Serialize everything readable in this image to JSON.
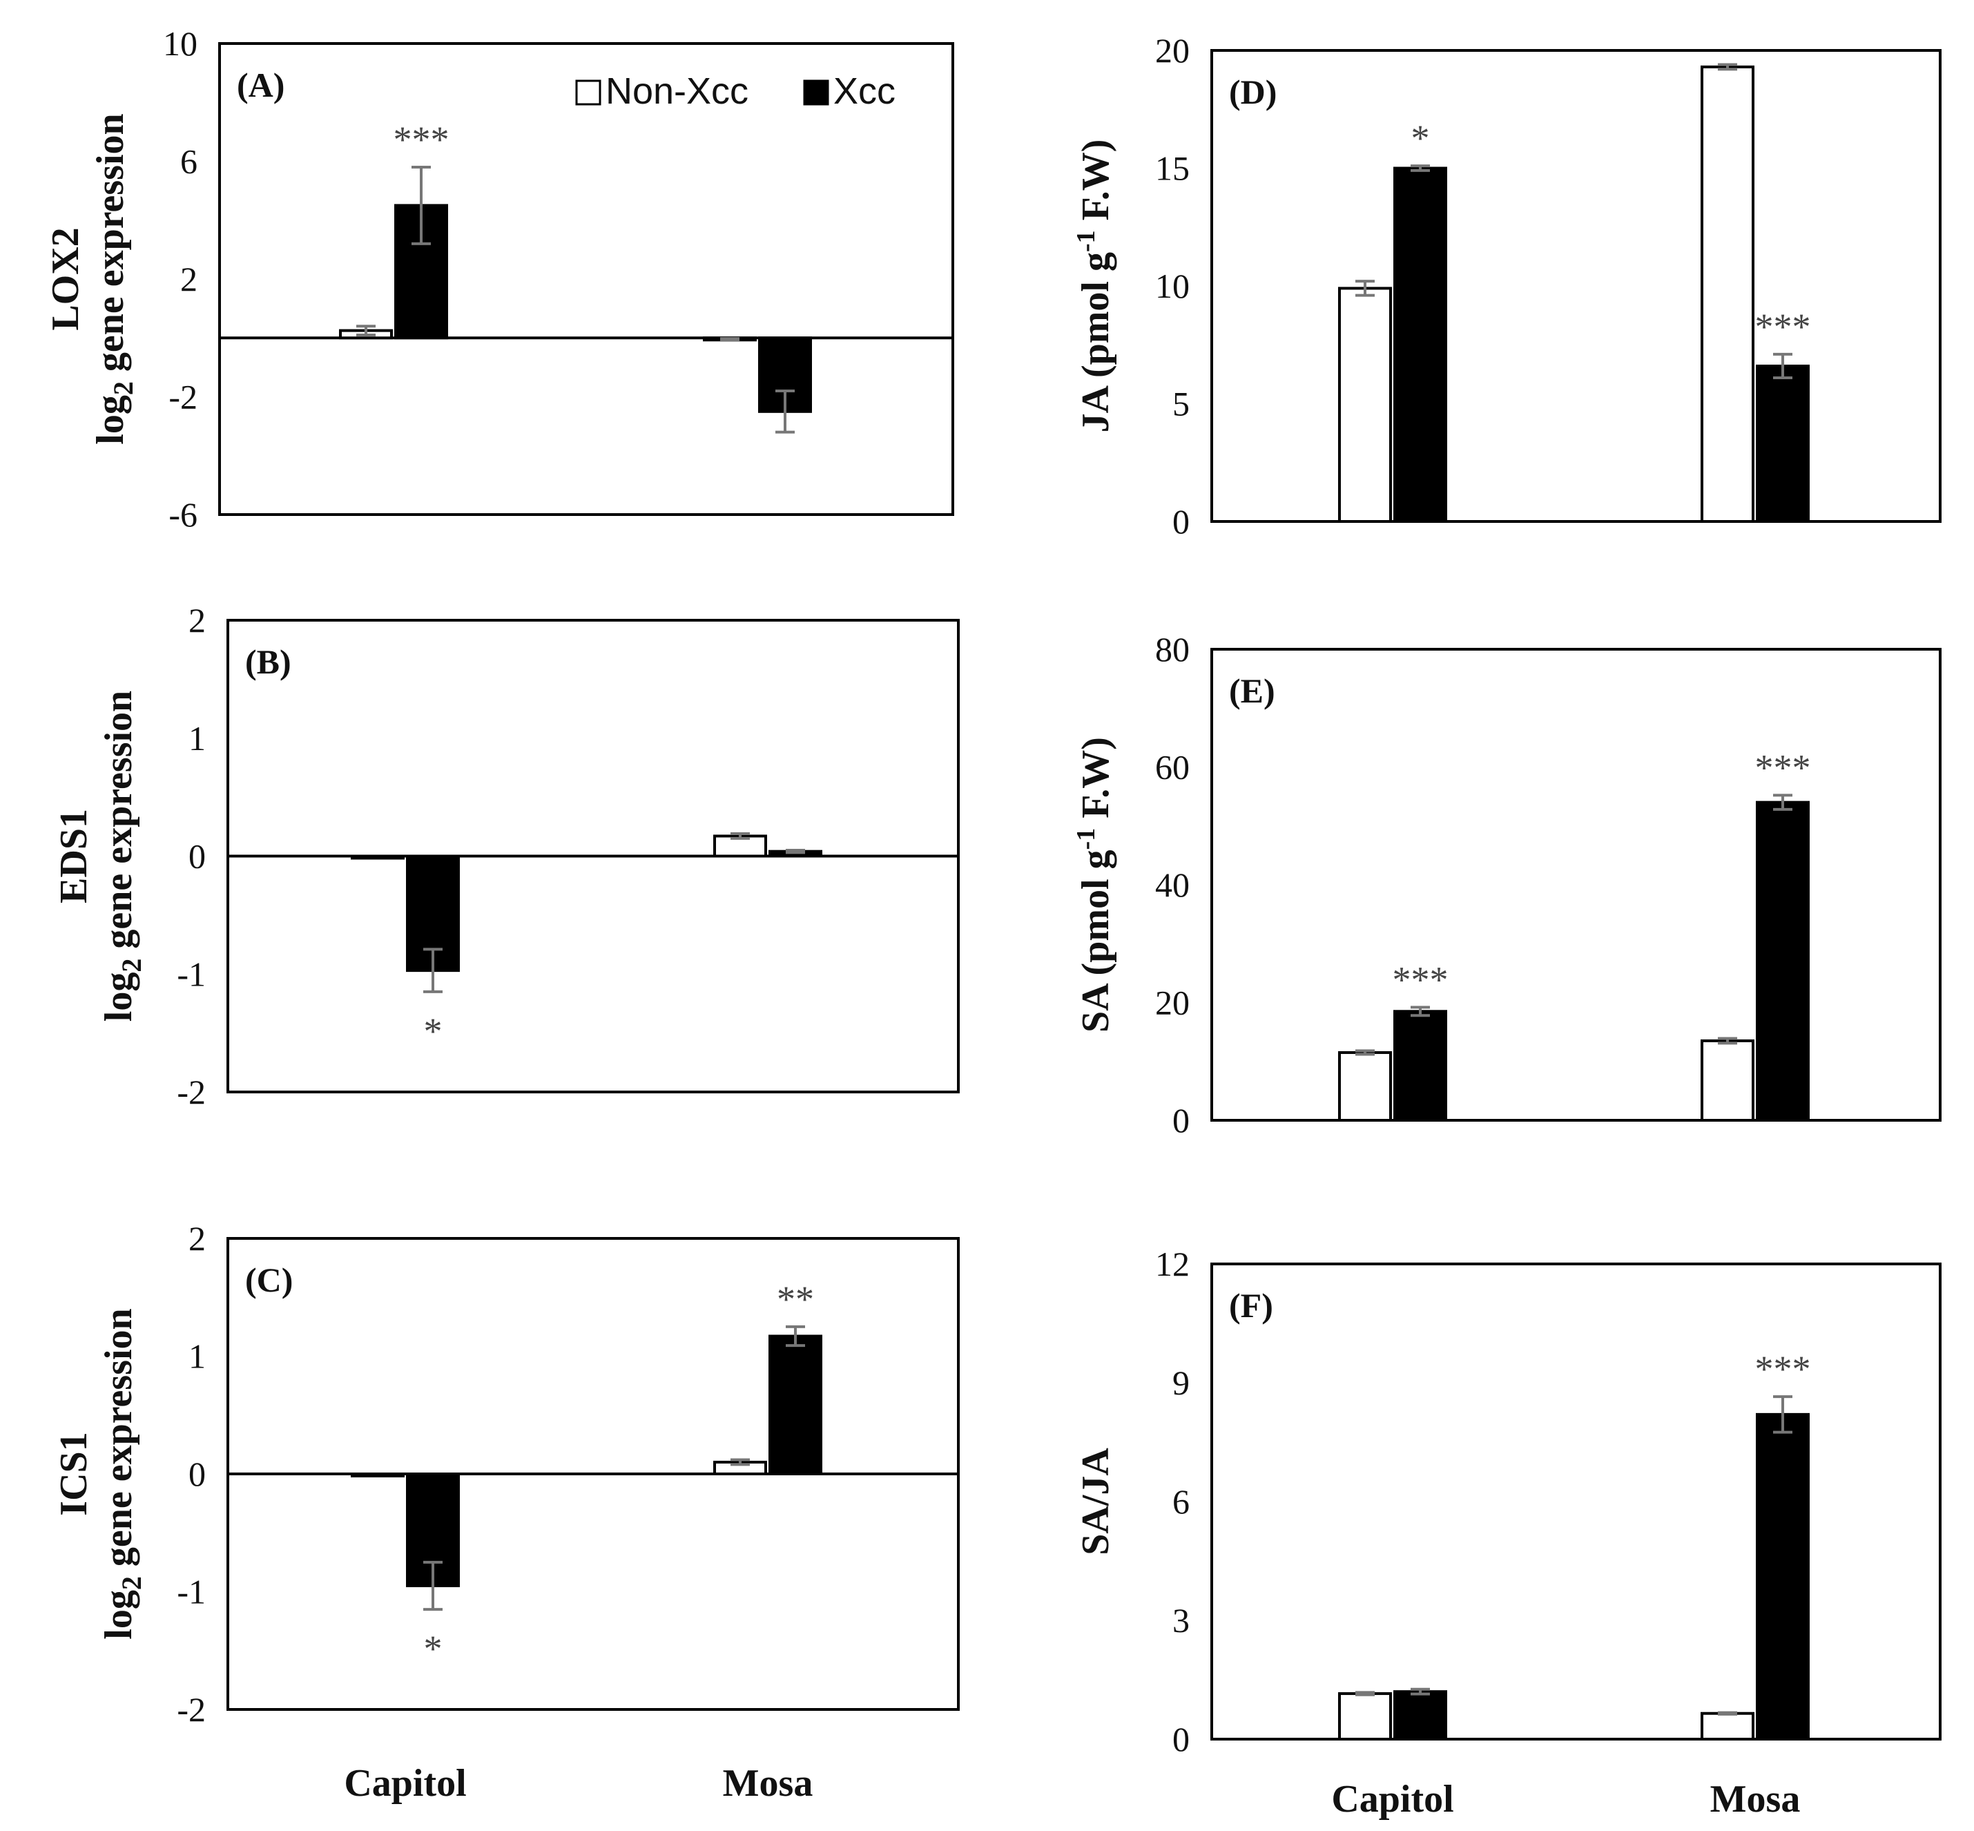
{
  "legend": {
    "nonxcc": "Non-Xcc",
    "xcc": "Xcc"
  },
  "chart_data": [
    {
      "id": "A",
      "panel_label": "(A)",
      "type": "bar",
      "gene": "LOX2",
      "ylabel_sub": "gene expression",
      "ylabel_log": "log",
      "ylabel_base": "2",
      "categories": [
        "Capitol",
        "Mosa"
      ],
      "ylim": [
        -6,
        10
      ],
      "yticks": [
        -6,
        -2,
        2,
        6,
        10
      ],
      "series": [
        {
          "name": "Non-Xcc",
          "values": [
            0.25,
            -0.05
          ],
          "errors": [
            0.15,
            0.03
          ]
        },
        {
          "name": "Xcc",
          "values": [
            4.5,
            -2.5
          ],
          "errors": [
            1.3,
            0.7
          ]
        }
      ],
      "significance": [
        "***",
        ""
      ]
    },
    {
      "id": "B",
      "panel_label": "(B)",
      "type": "bar",
      "gene": "EDS1",
      "ylabel_sub": "gene expression",
      "ylabel_log": "log",
      "ylabel_base": "2",
      "categories": [
        "Capitol",
        "Mosa"
      ],
      "ylim": [
        -2,
        2
      ],
      "yticks": [
        -2,
        -1,
        0,
        1,
        2
      ],
      "series": [
        {
          "name": "Non-Xcc",
          "values": [
            0.0,
            0.17
          ],
          "errors": [
            0.0,
            0.02
          ]
        },
        {
          "name": "Xcc",
          "values": [
            -0.97,
            0.04
          ],
          "errors": [
            0.18,
            0.01
          ]
        }
      ],
      "significance": [
        "*",
        ""
      ]
    },
    {
      "id": "C",
      "panel_label": "(C)",
      "type": "bar",
      "gene": "ICS1",
      "ylabel_sub": "gene expression",
      "ylabel_log": "log",
      "ylabel_base": "2",
      "categories": [
        "Capitol",
        "Mosa"
      ],
      "ylim": [
        -2,
        2
      ],
      "yticks": [
        -2,
        -1,
        0,
        1,
        2
      ],
      "series": [
        {
          "name": "Non-Xcc",
          "values": [
            0.0,
            0.1
          ],
          "errors": [
            0.0,
            0.02
          ]
        },
        {
          "name": "Xcc",
          "values": [
            -0.95,
            1.17
          ],
          "errors": [
            0.2,
            0.08
          ]
        }
      ],
      "significance": [
        "*",
        "**"
      ]
    },
    {
      "id": "D",
      "panel_label": "(D)",
      "type": "bar",
      "ylabel_pre": "JA (pmol g",
      "ylabel_sup": "-1",
      "ylabel_post": " F.W)",
      "categories": [
        "Capitol",
        "Mosa"
      ],
      "ylim": [
        0,
        20
      ],
      "yticks": [
        0,
        5,
        10,
        15,
        20
      ],
      "series": [
        {
          "name": "Non-Xcc",
          "values": [
            9.9,
            19.3
          ],
          "errors": [
            0.3,
            0.1
          ]
        },
        {
          "name": "Xcc",
          "values": [
            15.0,
            6.6
          ],
          "errors": [
            0.1,
            0.5
          ]
        }
      ],
      "significance": [
        "*",
        "***"
      ]
    },
    {
      "id": "E",
      "panel_label": "(E)",
      "type": "bar",
      "ylabel_pre": "SA (pmol g",
      "ylabel_sup": "-1",
      "ylabel_post": " F.W)",
      "categories": [
        "Capitol",
        "Mosa"
      ],
      "ylim": [
        0,
        80
      ],
      "yticks": [
        0,
        20,
        40,
        60,
        80
      ],
      "series": [
        {
          "name": "Non-Xcc",
          "values": [
            11.5,
            13.5
          ],
          "errors": [
            0.3,
            0.4
          ]
        },
        {
          "name": "Xcc",
          "values": [
            18.5,
            54.0
          ],
          "errors": [
            0.7,
            1.2
          ]
        }
      ],
      "significance": [
        "***",
        "***"
      ]
    },
    {
      "id": "F",
      "panel_label": "(F)",
      "type": "bar",
      "ylabel": "SA/JA",
      "categories": [
        "Capitol",
        "Mosa"
      ],
      "ylim": [
        0,
        12
      ],
      "yticks": [
        0,
        3,
        6,
        9,
        12
      ],
      "series": [
        {
          "name": "Non-Xcc",
          "values": [
            1.15,
            0.65
          ],
          "errors": [
            0.03,
            0.02
          ]
        },
        {
          "name": "Xcc",
          "values": [
            1.2,
            8.2
          ],
          "errors": [
            0.06,
            0.45
          ]
        }
      ],
      "significance": [
        "",
        "***"
      ]
    }
  ]
}
